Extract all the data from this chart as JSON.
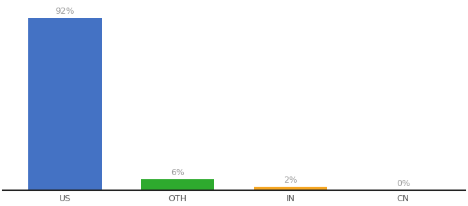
{
  "categories": [
    "US",
    "OTH",
    "IN",
    "CN"
  ],
  "values": [
    92,
    6,
    2,
    0.3
  ],
  "labels": [
    "92%",
    "6%",
    "2%",
    "0%"
  ],
  "colors": [
    "#4472C4",
    "#2EAA2E",
    "#F5A623",
    "#4472C4"
  ],
  "ylim": [
    0,
    100
  ],
  "bar_width": 0.65,
  "background_color": "#ffffff",
  "label_fontsize": 9,
  "tick_fontsize": 9,
  "label_color": "#999999",
  "tick_color": "#555555",
  "spine_color": "#222222"
}
